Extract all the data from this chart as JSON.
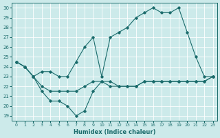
{
  "xlabel": "Humidex (Indice chaleur)",
  "bg_color": "#cceaea",
  "line_color": "#1a6b6b",
  "grid_color": "#b8d8d8",
  "xlim": [
    -0.5,
    23.5
  ],
  "ylim": [
    18.5,
    30.5
  ],
  "yticks": [
    19,
    20,
    21,
    22,
    23,
    24,
    25,
    26,
    27,
    28,
    29,
    30
  ],
  "xticks": [
    0,
    1,
    2,
    3,
    4,
    5,
    6,
    7,
    8,
    9,
    10,
    11,
    12,
    13,
    14,
    15,
    16,
    17,
    18,
    19,
    20,
    21,
    22,
    23
  ],
  "series1": [
    24.5,
    24.0,
    23.0,
    22.0,
    21.5,
    21.5,
    21.5,
    21.5,
    22.0,
    22.5,
    22.5,
    22.5,
    22.0,
    22.0,
    22.0,
    22.5,
    22.5,
    22.5,
    22.5,
    22.5,
    22.5,
    22.5,
    22.5,
    23.0
  ],
  "series2": [
    24.5,
    24.0,
    23.0,
    23.5,
    23.5,
    23.0,
    23.0,
    24.5,
    26.0,
    27.0,
    23.0,
    27.0,
    27.5,
    28.0,
    29.0,
    29.5,
    30.0,
    29.5,
    29.5,
    30.0,
    27.5,
    25.0,
    23.0,
    23.0
  ],
  "series3": [
    24.5,
    24.0,
    23.0,
    21.5,
    20.5,
    20.5,
    20.0,
    19.0,
    19.5,
    21.5,
    22.5,
    22.0,
    22.0,
    22.0,
    22.0,
    22.5,
    22.5,
    22.5,
    22.5,
    22.5,
    22.5,
    22.5,
    22.5,
    23.0
  ]
}
